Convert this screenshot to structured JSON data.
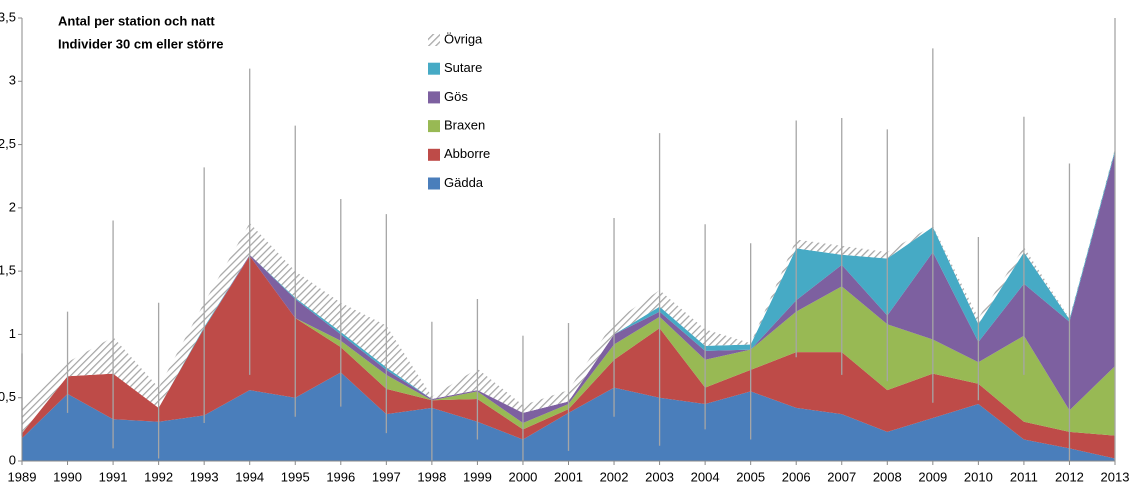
{
  "chart_data": {
    "type": "stacked_area",
    "title": "Antal per station och natt",
    "subtitle": "Individer 30 cm  eller större",
    "categories": [
      "1989",
      "1990",
      "1991",
      "1992",
      "1993",
      "1994",
      "1995",
      "1996",
      "1997",
      "1998",
      "1999",
      "2000",
      "2001",
      "2002",
      "2003",
      "2004",
      "2005",
      "2006",
      "2007",
      "2008",
      "2009",
      "2010",
      "2011",
      "2012",
      "2013"
    ],
    "series": [
      {
        "name": "Gädda",
        "color": "#4a7ebb",
        "values": [
          0.18,
          0.53,
          0.33,
          0.31,
          0.36,
          0.56,
          0.5,
          0.7,
          0.37,
          0.42,
          0.31,
          0.17,
          0.38,
          0.58,
          0.5,
          0.45,
          0.55,
          0.42,
          0.37,
          0.23,
          0.34,
          0.45,
          0.17,
          0.1,
          0.02
        ]
      },
      {
        "name": "Abborre",
        "color": "#be4b48",
        "values": [
          0.04,
          0.14,
          0.36,
          0.11,
          0.69,
          1.06,
          0.63,
          0.2,
          0.2,
          0.06,
          0.18,
          0.08,
          0.03,
          0.22,
          0.55,
          0.13,
          0.17,
          0.44,
          0.49,
          0.33,
          0.35,
          0.16,
          0.14,
          0.13,
          0.18
        ]
      },
      {
        "name": "Braxen",
        "color": "#98b954",
        "values": [
          0,
          0,
          0,
          0,
          0,
          0,
          0,
          0.05,
          0.11,
          0,
          0.06,
          0.05,
          0.04,
          0.12,
          0.09,
          0.22,
          0.16,
          0.32,
          0.52,
          0.52,
          0.27,
          0.17,
          0.68,
          0.17,
          0.55
        ]
      },
      {
        "name": "Gös",
        "color": "#7d60a0",
        "values": [
          0,
          0,
          0,
          0,
          0,
          0.01,
          0.15,
          0.05,
          0.04,
          0.01,
          0.01,
          0.08,
          0.02,
          0.08,
          0.04,
          0.07,
          0,
          0.09,
          0.17,
          0.07,
          0.69,
          0.16,
          0.41,
          0.7,
          1.69
        ]
      },
      {
        "name": "Sutare",
        "color": "#46aac5",
        "values": [
          0,
          0,
          0,
          0,
          0.01,
          0,
          0.01,
          0.02,
          0.02,
          0,
          0,
          0,
          0,
          0,
          0.04,
          0.04,
          0.04,
          0.41,
          0.08,
          0.45,
          0.2,
          0.14,
          0.25,
          0.02,
          0.02
        ]
      },
      {
        "name": "Övriga",
        "color": "#a6a6a6",
        "hatch": true,
        "values": [
          0.2,
          0.11,
          0.29,
          0.16,
          0.19,
          0.25,
          0.21,
          0.23,
          0.33,
          0.02,
          0.17,
          0.06,
          0.09,
          0.1,
          0.13,
          0.13,
          0.01,
          0.07,
          0.07,
          0.05,
          0.01,
          0.05,
          0.04,
          0.01,
          0.01
        ]
      }
    ],
    "error_low": [
      0.2,
      0.38,
      0.1,
      0.02,
      0.3,
      0.68,
      0.35,
      0.43,
      0.22,
      0,
      0.17,
      0,
      0.08,
      0.35,
      0.12,
      0.25,
      0.17,
      0.82,
      0.68,
      0.63,
      0.46,
      0.48,
      0.68,
      0,
      0
    ],
    "error_high": [
      0.85,
      1.18,
      1.9,
      1.25,
      2.32,
      3.1,
      2.65,
      2.07,
      1.95,
      1.1,
      1.28,
      0.99,
      1.09,
      1.92,
      2.59,
      1.87,
      1.72,
      2.69,
      2.71,
      2.62,
      3.26,
      1.77,
      2.72,
      2.35,
      3.5
    ],
    "error_color": "#a6a6a6",
    "ylim": [
      0,
      3.5
    ],
    "yticks": [
      0,
      {
        "value": 0.5,
        "label": "0,5"
      },
      1,
      {
        "value": 1.5,
        "label": "1,5"
      },
      2,
      {
        "value": 2.5,
        "label": "2,5"
      },
      3,
      {
        "value": 3.5,
        "label": "3,5"
      }
    ],
    "legend": "top-center"
  }
}
